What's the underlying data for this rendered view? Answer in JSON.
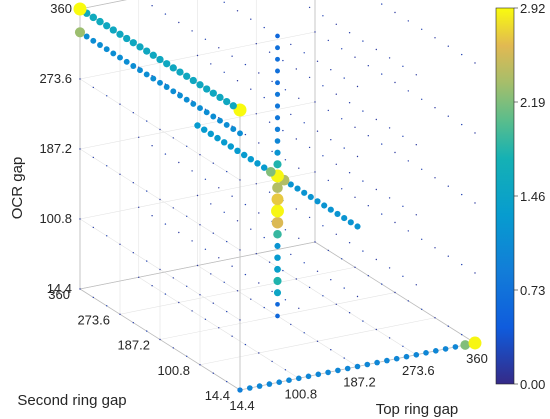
{
  "chart_data": {
    "type": "scatter3d",
    "title": "",
    "xlabel": "Top ring gap",
    "ylabel": "Second ring gap",
    "zlabel": "OCR gap",
    "x_ticks": [
      "14.4",
      "100.8",
      "187.2",
      "273.6",
      "360"
    ],
    "y_ticks": [
      "14.4",
      "100.8",
      "187.2",
      "273.6",
      "360"
    ],
    "z_ticks": [
      "14.4",
      "100.8",
      "187.2",
      "273.6",
      "360"
    ],
    "xlim": [
      14.4,
      360
    ],
    "ylim": [
      14.4,
      360
    ],
    "zlim": [
      14.4,
      360
    ],
    "colorbar": {
      "ticks": [
        "0.00",
        "0.73",
        "1.46",
        "2.19",
        "2.92"
      ],
      "range": [
        0,
        2.92
      ],
      "colormap": "parula"
    },
    "grid": true,
    "notes_series": [
      {
        "name": "",
        "description_x": "OCR gap line (x=14.4, y=360)",
        "points": [
          [
            14.4,
            360,
            360,
            2.92
          ],
          [
            14.4,
            360,
            345.6,
            1.5
          ],
          [
            14.4,
            360,
            331.2,
            1.45
          ],
          [
            14.4,
            360,
            316.8,
            1.4
          ]
        ]
      },
      {
        "name": "",
        "points": []
      }
    ],
    "edge_top": {
      "x": 360,
      "z": 360,
      "y_values": [
        14.4,
        28.8,
        43.2,
        57.6,
        72,
        86.4,
        100.8,
        115.2,
        129.6,
        144,
        158.4,
        172.8,
        187.2,
        201.6,
        216,
        230.4,
        244.8,
        259.2,
        273.6,
        288,
        302.4,
        316.8,
        331.2,
        345.6,
        360
      ],
      "values": [
        2.92,
        1.55,
        1.55,
        1.55,
        1.55,
        1.55,
        1.55,
        1.55,
        1.55,
        1.55,
        1.55,
        1.55,
        1.55,
        1.55,
        1.55,
        1.55,
        1.55,
        1.55,
        1.55,
        1.55,
        1.55,
        1.6,
        1.6,
        1.6,
        2.92
      ]
    },
    "edge_top_lower": {
      "x": 360,
      "z": 331.2,
      "y_values": [
        14.4,
        28.8,
        43.2,
        57.6,
        72,
        86.4,
        100.8,
        115.2,
        129.6,
        144,
        158.4,
        172.8,
        187.2,
        201.6,
        216,
        230.4,
        244.8,
        259.2,
        273.6,
        288,
        302.4,
        316.8,
        331.2,
        345.6,
        360
      ],
      "values": [
        1.1,
        1.1,
        1.1,
        1.1,
        1.1,
        1.1,
        1.1,
        1.1,
        1.1,
        1.1,
        1.1,
        1.1,
        1.1,
        1.1,
        1.1,
        1.1,
        1.1,
        1.1,
        1.1,
        1.1,
        1.1,
        1.1,
        1.1,
        1.1,
        2.3
      ]
    },
    "edge_mid": {
      "x": 187.2,
      "z": 187.2,
      "y_values": [
        14.4,
        28.8,
        43.2,
        57.6,
        72,
        86.4,
        100.8,
        115.2,
        129.6,
        144,
        158.4,
        172.8,
        187.2,
        201.6,
        216,
        230.4,
        244.8,
        259.2,
        273.6,
        288,
        302.4,
        316.8,
        331.2,
        345.6,
        360
      ],
      "values": [
        1.2,
        1.2,
        1.2,
        1.2,
        1.2,
        1.2,
        1.2,
        1.2,
        1.2,
        1.2,
        1.2,
        2.4,
        2.9,
        2.2,
        1.3,
        1.3,
        1.3,
        1.3,
        1.3,
        1.3,
        1.3,
        1.3,
        1.3,
        1.3,
        1.3
      ]
    },
    "edge_bottom": {
      "y": 14.4,
      "z": 14.4,
      "x_values": [
        14.4,
        28.8,
        43.2,
        57.6,
        72,
        86.4,
        100.8,
        115.2,
        129.6,
        144,
        158.4,
        172.8,
        187.2,
        201.6,
        216,
        230.4,
        244.8,
        259.2,
        273.6,
        288,
        302.4,
        316.8,
        331.2,
        345.6,
        360
      ],
      "values": [
        0.9,
        1.0,
        1.0,
        1.0,
        1.0,
        1.0,
        1.0,
        1.0,
        1.0,
        1.0,
        1.0,
        1.0,
        1.0,
        1.0,
        1.0,
        1.0,
        1.0,
        1.0,
        1.0,
        1.0,
        1.0,
        1.0,
        1.0,
        2.2,
        2.9
      ]
    },
    "vertical_line": {
      "x": 187.2,
      "y": 187.2,
      "z_values": [
        14.4,
        28.8,
        43.2,
        57.6,
        72,
        86.4,
        100.8,
        115.2,
        129.6,
        144,
        158.4,
        172.8,
        187.2,
        201.6,
        216,
        230.4,
        244.8,
        259.2,
        273.6,
        288,
        302.4,
        316.8,
        331.2,
        345.6,
        360
      ],
      "values": [
        0.6,
        0.6,
        1.5,
        1.8,
        1.4,
        1.3,
        1.2,
        1.9,
        2.6,
        2.9,
        2.7,
        2.4,
        2.2,
        1.8,
        1.2,
        1.0,
        0.9,
        0.8,
        0.8,
        0.8,
        0.7,
        0.7,
        0.7,
        0.7,
        0.6
      ]
    }
  }
}
